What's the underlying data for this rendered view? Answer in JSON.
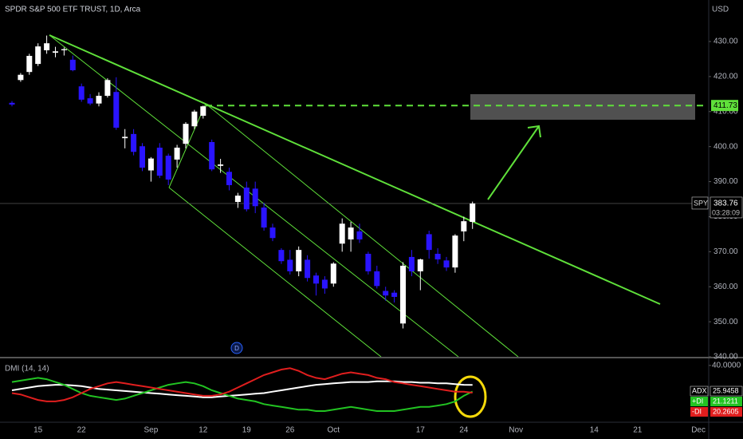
{
  "chart_data": [
    {
      "type": "candlestick",
      "title": "SPDR S&P 500 ETF TRUST, 1D, Arca",
      "currency": "USD",
      "symbol": "SPY",
      "countdown": "03:28:09",
      "marker": "D",
      "up_color": "#ffffff",
      "down_color": "#2a14ff",
      "grid": false,
      "categories": [
        null,
        null,
        null,
        "15",
        null,
        null,
        null,
        null,
        "22",
        null,
        null,
        null,
        null,
        null,
        null,
        null,
        "Sep",
        null,
        null,
        null,
        null,
        null,
        "12",
        null,
        null,
        null,
        null,
        "19",
        null,
        null,
        null,
        null,
        "26",
        null,
        null,
        null,
        null,
        "Oct",
        null,
        null,
        null,
        null,
        null,
        null,
        null,
        null,
        null,
        "17",
        null,
        null,
        null,
        null,
        "24",
        null,
        null,
        null,
        null,
        null,
        "Nov",
        null,
        null,
        null,
        null,
        null,
        null,
        null,
        null,
        "14",
        null,
        null,
        null,
        null,
        "21",
        null,
        null,
        null,
        null,
        null,
        null,
        "Dec"
      ],
      "open": [
        412.5,
        419,
        421.3,
        423.6,
        427.5,
        426.8,
        427.5,
        424.8,
        417.2,
        413.8,
        412.3,
        414.5,
        415.6,
        402.4,
        403.6,
        400.1,
        393.2,
        399.7,
        397.4,
        396.3,
        400.8,
        405.8,
        408.8,
        401.3,
        394.5,
        392.8,
        384.2,
        388.3,
        388,
        382.6,
        376.9,
        370.5,
        367.7,
        364.4,
        367.7,
        363.2,
        362,
        360.9,
        372.3,
        373.5,
        375.8,
        369.4,
        364.4,
        358.8,
        358.3,
        349.5,
        368.5,
        364.4,
        375,
        369.4,
        367.5,
        365.5,
        375.8,
        378.5,
        null,
        null,
        null,
        null,
        null,
        null,
        null,
        null,
        null,
        null,
        null,
        null,
        null,
        null,
        null,
        null,
        null,
        null,
        null,
        null,
        null,
        null,
        null,
        null,
        null,
        null
      ],
      "high": [
        413,
        421,
        426.5,
        429.5,
        431.7,
        428.5,
        428.3,
        426,
        418,
        415,
        415.5,
        419.5,
        419.8,
        405,
        405,
        401,
        397,
        401,
        398,
        400.5,
        407,
        410.5,
        411.7,
        402,
        396.5,
        394,
        386.8,
        390,
        390,
        384,
        378,
        371,
        370.5,
        371.5,
        369,
        364,
        363,
        367,
        379.5,
        378.5,
        378,
        370,
        366,
        360,
        359,
        367,
        370.5,
        368,
        376,
        371,
        368.5,
        375,
        380,
        384.3,
        null,
        null,
        null,
        null,
        null,
        null,
        null,
        null,
        null,
        null,
        null,
        null,
        null,
        null,
        null,
        null,
        null,
        null,
        null,
        null,
        null,
        null,
        null,
        null,
        null,
        null
      ],
      "low": [
        411.5,
        418.5,
        420.5,
        423,
        426.5,
        425.5,
        426,
        421.5,
        412.8,
        411.8,
        411.5,
        414,
        404.8,
        399.5,
        397.5,
        393,
        390,
        391,
        389,
        394,
        399.5,
        405,
        408,
        393,
        392.5,
        387.5,
        382.5,
        381.5,
        381,
        376,
        373,
        366.5,
        363.5,
        363,
        361.5,
        357.5,
        358,
        360,
        370,
        370,
        372.5,
        363.5,
        359.5,
        356,
        355.5,
        348.1,
        363,
        359,
        368,
        366.5,
        364.5,
        364,
        373,
        376.5,
        null,
        null,
        null,
        null,
        null,
        null,
        null,
        null,
        null,
        null,
        null,
        null,
        null,
        null,
        null,
        null,
        null,
        null,
        null,
        null,
        null,
        null,
        null,
        null,
        null,
        null
      ],
      "close": [
        412,
        420.5,
        425.9,
        428.6,
        429.5,
        427.2,
        427.8,
        421.8,
        413.4,
        412.3,
        414.5,
        419,
        405.4,
        402.8,
        398.5,
        394,
        396.6,
        391.7,
        390.6,
        399.7,
        406.5,
        410,
        411.5,
        393.5,
        394.9,
        389,
        386,
        382.1,
        383,
        376.9,
        373.9,
        367.3,
        364.4,
        370.5,
        362.5,
        360.9,
        359.5,
        366.6,
        378,
        376.9,
        373.5,
        364.4,
        360.2,
        357.5,
        357.1,
        366,
        364.4,
        367.8,
        370.5,
        367.8,
        365.5,
        374.6,
        378.7,
        383.76,
        null,
        null,
        null,
        null,
        null,
        null,
        null,
        null,
        null,
        null,
        null,
        null,
        null,
        null,
        null,
        null,
        null,
        null,
        null,
        null,
        null,
        null,
        null,
        null,
        null,
        null
      ],
      "level": 411.73,
      "ylim": [
        340,
        441.85
      ],
      "yticks": [
        {
          "value": 430,
          "label": "430.00"
        },
        {
          "value": 420,
          "label": "420.00"
        },
        {
          "value": 410,
          "label": "410.00"
        },
        {
          "value": 400,
          "label": "400.00"
        },
        {
          "value": 390,
          "label": "390.00"
        },
        {
          "value": 380,
          "label": "380.00"
        },
        {
          "value": 370,
          "label": "370.00"
        },
        {
          "value": 360,
          "label": "360.00"
        },
        {
          "value": 350,
          "label": "350.00"
        },
        {
          "value": 340,
          "label": "340.00"
        }
      ]
    },
    {
      "type": "line",
      "title": "DMI (14, 14)",
      "ylim": [
        -0.5,
        44.5
      ],
      "yticks": [
        {
          "value": 40,
          "label": "40.0000"
        }
      ],
      "series": [
        {
          "name": "ADX",
          "color": "#ffffff",
          "values": [
            22,
            23,
            24,
            25,
            25.5,
            26,
            26,
            25.5,
            25,
            24,
            23,
            22.5,
            22,
            21.5,
            21,
            20.5,
            20,
            19.5,
            19,
            18.5,
            18,
            17.5,
            17,
            17,
            17.5,
            18,
            18.5,
            19,
            19.5,
            20,
            21,
            22,
            23,
            24,
            25,
            26,
            26.5,
            27,
            27.5,
            28,
            28,
            28,
            28.5,
            28.5,
            28.5,
            28,
            28,
            27.5,
            27.5,
            27,
            27,
            26.5,
            26,
            25.9458,
            null,
            null,
            null,
            null,
            null,
            null,
            null,
            null,
            null,
            null,
            null,
            null,
            null,
            null,
            null,
            null,
            null,
            null,
            null,
            null,
            null,
            null,
            null,
            null,
            null,
            null
          ]
        },
        {
          "name": "+DI",
          "color": "#22c322",
          "values": [
            28,
            29,
            30,
            31,
            30,
            28,
            26,
            23,
            20,
            18,
            17,
            16,
            15,
            16,
            18,
            20,
            22,
            24,
            26,
            27,
            28,
            27,
            25,
            22,
            20,
            18,
            16,
            15,
            14,
            12,
            11,
            10,
            9,
            8,
            8,
            7,
            7,
            8,
            9,
            10,
            9,
            8,
            7,
            7,
            7,
            8,
            9,
            10,
            10,
            11,
            12,
            14,
            18,
            21.1211,
            null,
            null,
            null,
            null,
            null,
            null,
            null,
            null,
            null,
            null,
            null,
            null,
            null,
            null,
            null,
            null,
            null,
            null,
            null,
            null,
            null,
            null,
            null,
            null,
            null,
            null
          ]
        },
        {
          "name": "-DI",
          "color": "#e01e1e",
          "values": [
            20,
            19,
            17,
            15,
            14,
            14,
            15,
            17,
            20,
            23,
            25,
            27,
            28,
            27,
            26,
            25,
            24,
            23,
            22,
            21,
            20,
            19,
            18,
            18,
            19,
            21,
            24,
            27,
            30,
            33,
            35,
            37,
            38,
            36,
            33,
            31,
            30,
            32,
            34,
            35,
            34,
            33,
            31,
            30,
            28,
            27,
            26,
            25,
            24,
            23,
            22,
            21,
            21,
            20.2605,
            null,
            null,
            null,
            null,
            null,
            null,
            null,
            null,
            null,
            null,
            null,
            null,
            null,
            null,
            null,
            null,
            null,
            null,
            null,
            null,
            null,
            null,
            null,
            null,
            null,
            null
          ]
        }
      ]
    }
  ]
}
